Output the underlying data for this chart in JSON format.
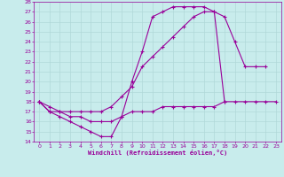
{
  "xlabel": "Windchill (Refroidissement éolien,°C)",
  "xlim": [
    -0.5,
    23.5
  ],
  "ylim": [
    14,
    28
  ],
  "xticks": [
    0,
    1,
    2,
    3,
    4,
    5,
    6,
    7,
    8,
    9,
    10,
    11,
    12,
    13,
    14,
    15,
    16,
    17,
    18,
    19,
    20,
    21,
    22,
    23
  ],
  "yticks": [
    14,
    15,
    16,
    17,
    18,
    19,
    20,
    21,
    22,
    23,
    24,
    25,
    26,
    27,
    28
  ],
  "bg_color": "#c8ecec",
  "grid_color": "#b0d8d8",
  "line_color": "#990099",
  "line1_x": [
    0,
    1,
    2,
    3,
    4,
    5,
    6,
    7,
    8,
    9,
    10,
    11,
    12,
    13,
    14,
    15,
    16,
    17,
    18
  ],
  "line1_y": [
    18,
    17,
    16.5,
    16,
    15.5,
    15,
    14.5,
    14.5,
    16.5,
    20,
    23,
    26.5,
    27,
    27.5,
    27.5,
    27.5,
    27.5,
    27,
    18
  ],
  "line2_x": [
    0,
    1,
    2,
    3,
    4,
    5,
    6,
    7,
    8,
    9,
    10,
    11,
    12,
    13,
    14,
    15,
    16,
    17,
    18,
    19,
    20,
    21,
    22,
    23
  ],
  "line2_y": [
    18,
    17,
    17,
    16.5,
    16.5,
    16.0,
    16.0,
    16.0,
    16.5,
    17.0,
    17.0,
    17.0,
    17.5,
    17.5,
    17.5,
    17.5,
    17.5,
    17.5,
    18.0,
    18.0,
    18.0,
    18.0,
    18.0,
    18.0
  ],
  "line3_x": [
    0,
    1,
    2,
    3,
    4,
    5,
    6,
    7,
    8,
    9,
    10,
    11,
    12,
    13,
    14,
    15,
    16,
    17,
    18,
    19,
    20,
    21,
    22
  ],
  "line3_y": [
    18,
    17.5,
    17,
    17,
    17,
    17,
    17,
    17.5,
    18.5,
    19.5,
    21.5,
    22.5,
    23.5,
    24.5,
    25.5,
    26.5,
    27.0,
    27.0,
    26.5,
    24.0,
    21.5,
    21.5,
    21.5
  ]
}
